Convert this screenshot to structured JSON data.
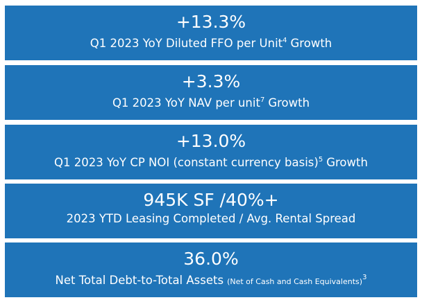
{
  "items": [
    {
      "headline": "+13.3%",
      "label": "Q1 2023 YoY Diluted FFO per Unit",
      "sup": "4",
      "suffix": "Growth"
    },
    {
      "headline": "+3.3%",
      "label": "Q1 2023 YoY NAV per unit",
      "sup": "7",
      "suffix": "Growth"
    },
    {
      "headline": "+13.0%",
      "label": "Q1 2023 YoY CP NOI (constant currency basis)",
      "sup": "5",
      "suffix": "Growth"
    },
    {
      "headline": "945K SF /40%+",
      "label": "2023 YTD Leasing Completed / Avg. Rental Spread"
    },
    {
      "headline": "36.0%",
      "label": "Net Total Debt-to-Total Assets",
      "small": "(Net of Cash and Cash Equivalents)",
      "sup": "3"
    }
  ]
}
